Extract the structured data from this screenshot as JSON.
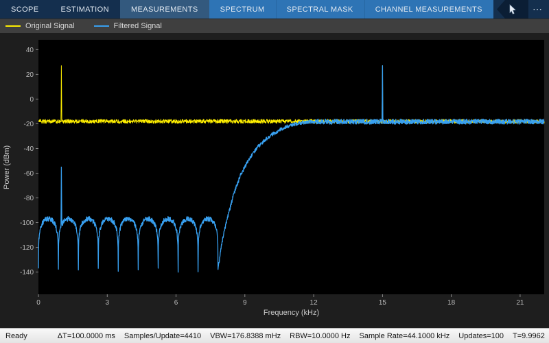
{
  "toolbar": {
    "tabs": [
      {
        "label": "SCOPE",
        "state": "normal"
      },
      {
        "label": "ESTIMATION",
        "state": "normal"
      },
      {
        "label": "MEASUREMENTS",
        "state": "selected"
      },
      {
        "label": "SPECTRUM",
        "state": "contextual"
      },
      {
        "label": "SPECTRAL MASK",
        "state": "contextual"
      },
      {
        "label": "CHANNEL MEASUREMENTS",
        "state": "contextual"
      }
    ],
    "more_icon": "⋯"
  },
  "legend": {
    "items": [
      {
        "label": "Original Signal"
      },
      {
        "label": "Filtered Signal"
      }
    ]
  },
  "statusbar": {
    "ready": "Ready",
    "items": [
      "ΔT=100.0000 ms",
      "Samples/Update=4410",
      "VBW=176.8388 mHz",
      "RBW=10.0000 Hz",
      "Sample Rate=44.1000 kHz",
      "Updates=100",
      "T=9.9962"
    ]
  },
  "colors": {
    "toolbar_bg": "#142f4e",
    "selected_tab_bg": "#33597e",
    "contextual_tab_bg": "#2e74b5",
    "plot_bg": "#000000"
  },
  "chart_data": {
    "type": "line",
    "title": "",
    "xlabel": "Frequency (kHz)",
    "ylabel": "Power (dBm)",
    "xlim": [
      0,
      22.05
    ],
    "ylim": [
      -158,
      48
    ],
    "xticks": [
      0,
      3,
      6,
      9,
      12,
      15,
      18,
      21
    ],
    "yticks": [
      40,
      20,
      0,
      -20,
      -40,
      -60,
      -80,
      -100,
      -120,
      -140
    ],
    "grid": false,
    "legend_position": "top-left",
    "series": [
      {
        "name": "Original Signal",
        "color": "#ffef00",
        "noise_floor_dbm": -18,
        "noise_ripple_db": 1.6,
        "tones": [
          {
            "freq_khz": 1.0,
            "peak_dbm": 27
          },
          {
            "freq_khz": 15.0,
            "peak_dbm": 27
          }
        ]
      },
      {
        "name": "Filtered Signal",
        "color": "#38a0f0",
        "passband_level_dbm": -18.3,
        "stopband": {
          "end_khz": 7.83,
          "lobe_peak_dbm": -97,
          "null_spacing_khz": 0.87,
          "null_floor_dbm": -141
        },
        "transition": [
          [
            7.85,
            -135
          ],
          [
            8.0,
            -116
          ],
          [
            8.2,
            -99
          ],
          [
            8.5,
            -78
          ],
          [
            8.8,
            -62
          ],
          [
            9.2,
            -48
          ],
          [
            9.6,
            -38
          ],
          [
            10.0,
            -31
          ],
          [
            10.5,
            -25
          ],
          [
            11.0,
            -21
          ],
          [
            11.5,
            -19
          ],
          [
            11.9,
            -18.4
          ]
        ],
        "tones": [
          {
            "freq_khz": 1.0,
            "peak_dbm": -55
          },
          {
            "freq_khz": 15.0,
            "peak_dbm": 27
          }
        ]
      }
    ]
  }
}
